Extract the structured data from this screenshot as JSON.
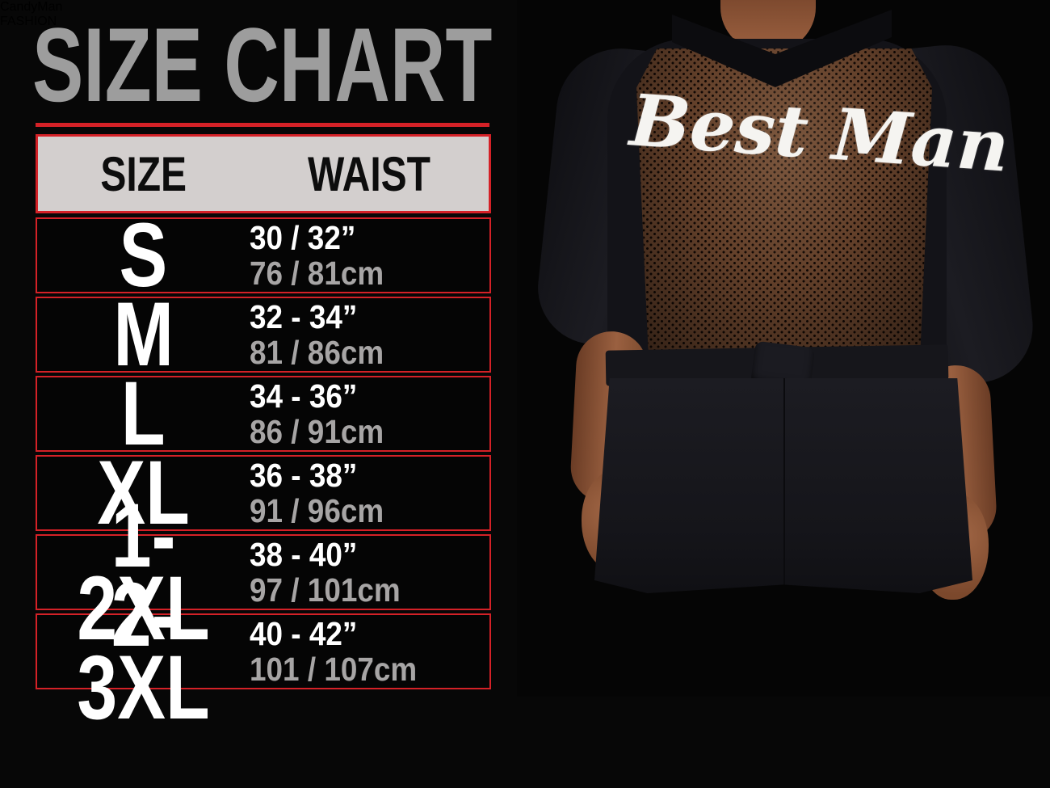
{
  "title": "SIZE CHART",
  "table": {
    "columns": [
      "SIZE",
      "WAIST"
    ],
    "rows": [
      {
        "size": "S",
        "waist_in": "30 / 32”",
        "waist_cm": "76 / 81cm"
      },
      {
        "size": "M",
        "waist_in": "32 - 34”",
        "waist_cm": "81 / 86cm"
      },
      {
        "size": "L",
        "waist_in": "34 - 36”",
        "waist_cm": "86 / 91cm"
      },
      {
        "size": "XL",
        "waist_in": "36 - 38”",
        "waist_cm": "91 / 96cm"
      },
      {
        "size": "1-2XL",
        "waist_in": "38 - 40”",
        "waist_cm": "97 / 101cm"
      },
      {
        "size": "2-3XL",
        "waist_in": "40 - 42”",
        "waist_cm": "101 / 107cm"
      }
    ]
  },
  "photo": {
    "print_text": "Best Man"
  },
  "footer": {
    "brand": "CandyMan",
    "tagline": "FASHION"
  },
  "colors": {
    "accent_red": "#d42127",
    "title_gray": "#9d9d9d",
    "header_bg": "#d3cfce",
    "inch_white": "#ffffff",
    "cm_gray": "#a7a5a5",
    "background": "#070707",
    "mesh_brown": "#63402a"
  },
  "chart_data": {
    "type": "table",
    "title": "SIZE CHART",
    "columns": [
      "SIZE",
      "WAIST (inches)",
      "WAIST (cm)"
    ],
    "rows": [
      [
        "S",
        "30 / 32",
        "76 / 81"
      ],
      [
        "M",
        "32 - 34",
        "81 / 86"
      ],
      [
        "L",
        "34 - 36",
        "86 / 91"
      ],
      [
        "XL",
        "36 - 38",
        "91 / 96"
      ],
      [
        "1-2XL",
        "38 - 40",
        "97 / 101"
      ],
      [
        "2-3XL",
        "40 - 42",
        "101 / 107"
      ]
    ]
  }
}
